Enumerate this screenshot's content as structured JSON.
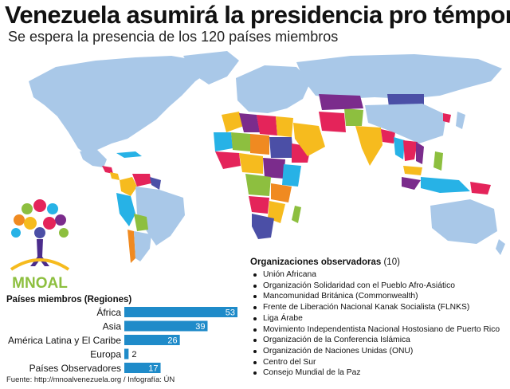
{
  "title": "Venezuela asumirá la presidencia pro témpore",
  "subtitle": "Se espera la presencia de los 120 países miembros",
  "logo_text": "MNOAL",
  "colors": {
    "ocean": "#ffffff",
    "non_member": "#a9c8e8",
    "bar": "#1f8bc9",
    "palette": [
      "#7b2c8c",
      "#e4245a",
      "#27b2e6",
      "#f6bb1e",
      "#8dbf3f",
      "#f08a21",
      "#4b4fa6"
    ]
  },
  "chart_data": {
    "type": "bar",
    "title": "Países miembros (Regiones)",
    "categories": [
      "África",
      "Asia",
      "América Latina y El Caribe",
      "Europa",
      "Países Observadores"
    ],
    "values": [
      53,
      39,
      26,
      2,
      17
    ],
    "xlim": [
      0,
      53
    ],
    "orientation": "horizontal",
    "data_labels": true
  },
  "observers": {
    "heading": "Organizaciones observadoras",
    "count": "(10)",
    "items": [
      "Unión Africana",
      "Organización Solidaridad con el Pueblo Afro-Asiático",
      "Mancomunidad Británica (Commonwealth)",
      "Frente de Liberación Nacional Kanak Socialista (FLNKS)",
      "Liga Árabe",
      "Movimiento Independentista Nacional Hostosiano de Puerto Rico",
      "Organización de la Conferencia Islámica",
      "Organización de Naciones Unidas (ONU)",
      "Centro del Sur",
      "Consejo Mundial de la Paz"
    ]
  },
  "source": "Fuente: http://mnoalvenezuela.org / Infografía: ÚN"
}
